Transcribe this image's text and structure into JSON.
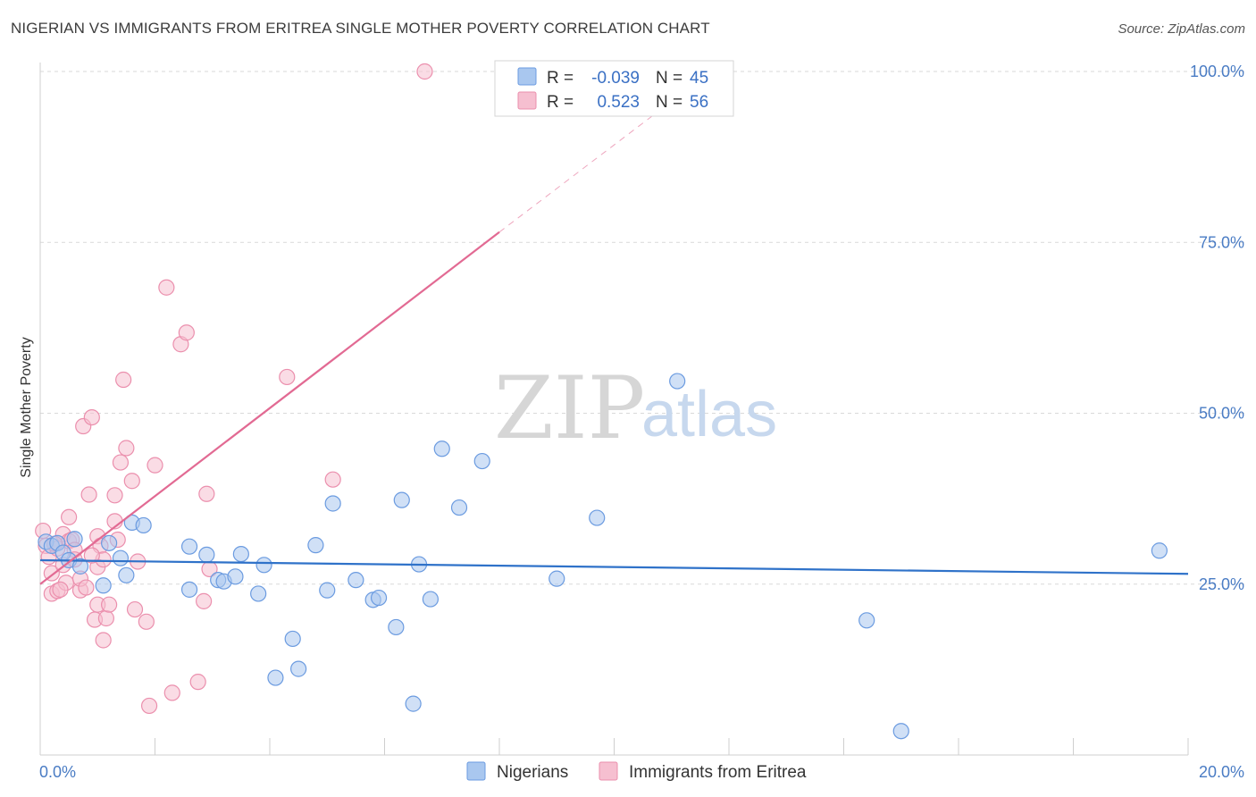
{
  "title": "NIGERIAN VS IMMIGRANTS FROM ERITREA SINGLE MOTHER POVERTY CORRELATION CHART",
  "source": "Source: ZipAtlas.com",
  "watermark": {
    "zip": "ZIP",
    "atlas": "atlas"
  },
  "colors": {
    "nigerian_fill": "#a9c7ef",
    "nigerian_stroke": "#6b9be0",
    "nigerian_line": "#2f72c9",
    "eritrea_fill": "#f6bfd0",
    "eritrea_stroke": "#eb8fad",
    "eritrea_line": "#e26a93",
    "grid": "#d9d9d9",
    "tick": "#4a7cc4"
  },
  "legend": {
    "rows": [
      {
        "r_label": "R =",
        "r_value": "-0.039",
        "n_label": "N =",
        "n_value": "45"
      },
      {
        "r_label": "R =",
        "r_value": "0.523",
        "n_label": "N =",
        "n_value": "56"
      }
    ]
  },
  "chart_data": {
    "type": "scatter",
    "title": "NIGERIAN VS IMMIGRANTS FROM ERITREA SINGLE MOTHER POVERTY CORRELATION CHART",
    "ylabel": "Single Mother Poverty",
    "xlabel": "",
    "xlim": [
      0,
      20
    ],
    "ylim": [
      0,
      102
    ],
    "x_ticks": [
      {
        "value": 0,
        "label": "0.0%"
      },
      {
        "value": 20,
        "label": "20.0%"
      }
    ],
    "y_ticks": [
      {
        "value": 25,
        "label": "25.0%"
      },
      {
        "value": 50,
        "label": "50.0%"
      },
      {
        "value": 75,
        "label": "75.0%"
      },
      {
        "value": 100,
        "label": "100.0%"
      }
    ],
    "grid": true,
    "legend_placement": "top-center",
    "series": [
      {
        "name": "Nigerians",
        "trend": {
          "x0": 0,
          "y0": 28.5,
          "x1": 20,
          "y1": 26.5
        },
        "points": [
          [
            0.1,
            31.2
          ],
          [
            0.2,
            30.6
          ],
          [
            0.3,
            31.0
          ],
          [
            0.4,
            29.6
          ],
          [
            0.5,
            28.5
          ],
          [
            0.6,
            31.6
          ],
          [
            0.7,
            27.6
          ],
          [
            1.2,
            31.0
          ],
          [
            1.4,
            28.8
          ],
          [
            1.5,
            26.3
          ],
          [
            1.6,
            34.0
          ],
          [
            1.8,
            33.6
          ],
          [
            2.6,
            24.2
          ],
          [
            2.6,
            30.5
          ],
          [
            2.9,
            29.3
          ],
          [
            3.1,
            25.6
          ],
          [
            3.2,
            25.4
          ],
          [
            3.4,
            26.1
          ],
          [
            3.5,
            29.4
          ],
          [
            3.8,
            23.6
          ],
          [
            3.9,
            27.8
          ],
          [
            4.4,
            17.0
          ],
          [
            4.1,
            11.3
          ],
          [
            4.5,
            12.6
          ],
          [
            4.8,
            30.7
          ],
          [
            5.5,
            25.6
          ],
          [
            5.1,
            36.8
          ],
          [
            5.0,
            24.1
          ],
          [
            5.8,
            22.7
          ],
          [
            5.9,
            23.0
          ],
          [
            6.2,
            18.7
          ],
          [
            6.3,
            37.3
          ],
          [
            6.5,
            7.5
          ],
          [
            6.6,
            27.9
          ],
          [
            6.8,
            22.8
          ],
          [
            7.0,
            44.8
          ],
          [
            7.3,
            36.2
          ],
          [
            7.7,
            43.0
          ],
          [
            9.0,
            25.8
          ],
          [
            9.7,
            34.7
          ],
          [
            11.1,
            54.7
          ],
          [
            14.4,
            19.7
          ],
          [
            15.0,
            3.5
          ],
          [
            19.5,
            29.9
          ],
          [
            1.1,
            24.8
          ]
        ]
      },
      {
        "name": "Immigrants from Eritrea",
        "trend": {
          "x0": 0,
          "y0": 25.0,
          "x1": 8.0,
          "y1": 76.5,
          "dash_to": {
            "x": 10.9,
            "y": 95.0
          }
        },
        "points": [
          [
            0.05,
            32.8
          ],
          [
            0.1,
            30.6
          ],
          [
            0.15,
            29.0
          ],
          [
            0.2,
            26.6
          ],
          [
            0.2,
            23.6
          ],
          [
            0.3,
            24.0
          ],
          [
            0.3,
            30.2
          ],
          [
            0.4,
            32.3
          ],
          [
            0.4,
            27.8
          ],
          [
            0.45,
            25.2
          ],
          [
            0.5,
            31.3
          ],
          [
            0.5,
            34.8
          ],
          [
            0.55,
            31.5
          ],
          [
            0.6,
            30.0
          ],
          [
            0.7,
            24.1
          ],
          [
            0.7,
            25.8
          ],
          [
            0.75,
            48.1
          ],
          [
            0.8,
            24.5
          ],
          [
            0.85,
            38.1
          ],
          [
            0.9,
            49.4
          ],
          [
            0.95,
            19.8
          ],
          [
            1.0,
            22.0
          ],
          [
            1.0,
            27.5
          ],
          [
            1.0,
            32.0
          ],
          [
            1.05,
            30.6
          ],
          [
            1.1,
            16.8
          ],
          [
            1.15,
            20.0
          ],
          [
            1.2,
            22.0
          ],
          [
            1.3,
            38.0
          ],
          [
            1.35,
            31.5
          ],
          [
            1.4,
            42.8
          ],
          [
            1.45,
            54.9
          ],
          [
            1.5,
            44.9
          ],
          [
            1.6,
            40.1
          ],
          [
            1.65,
            21.3
          ],
          [
            1.7,
            28.3
          ],
          [
            1.85,
            19.5
          ],
          [
            1.9,
            7.2
          ],
          [
            2.0,
            42.4
          ],
          [
            2.2,
            68.4
          ],
          [
            2.3,
            9.1
          ],
          [
            2.45,
            60.1
          ],
          [
            2.55,
            61.8
          ],
          [
            2.75,
            10.7
          ],
          [
            2.85,
            22.5
          ],
          [
            2.9,
            38.2
          ],
          [
            2.95,
            27.2
          ],
          [
            4.3,
            55.3
          ],
          [
            5.1,
            40.3
          ],
          [
            6.7,
            100.0
          ],
          [
            1.3,
            34.2
          ],
          [
            0.25,
            30.9
          ],
          [
            0.35,
            24.2
          ],
          [
            0.6,
            28.6
          ],
          [
            1.1,
            28.6
          ],
          [
            0.9,
            29.2
          ]
        ]
      }
    ]
  }
}
